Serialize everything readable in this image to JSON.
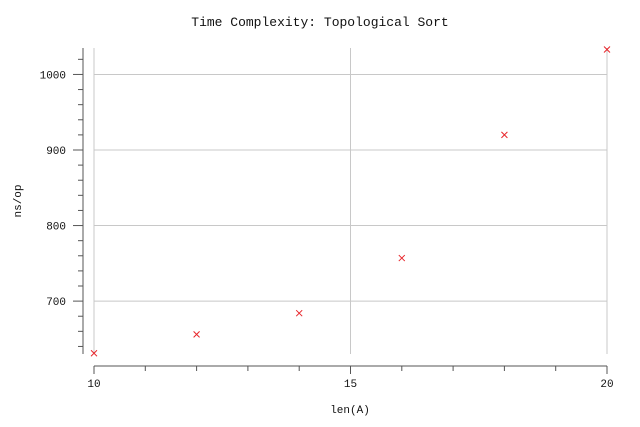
{
  "chart_data": {
    "type": "scatter",
    "title": "Time Complexity: Topological Sort",
    "xlabel": "len(A)",
    "ylabel": "ns/op",
    "xlim": [
      10,
      20
    ],
    "ylim": [
      630,
      1035
    ],
    "xticks": [
      10,
      15,
      20
    ],
    "yticks": [
      700,
      800,
      900,
      1000
    ],
    "grid": true,
    "marker": "x",
    "marker_color": "#e8262b",
    "series": [
      {
        "x": [
          10,
          12,
          14,
          16,
          18,
          20
        ],
        "y": [
          631,
          656,
          684,
          757,
          920,
          1033
        ]
      }
    ]
  }
}
